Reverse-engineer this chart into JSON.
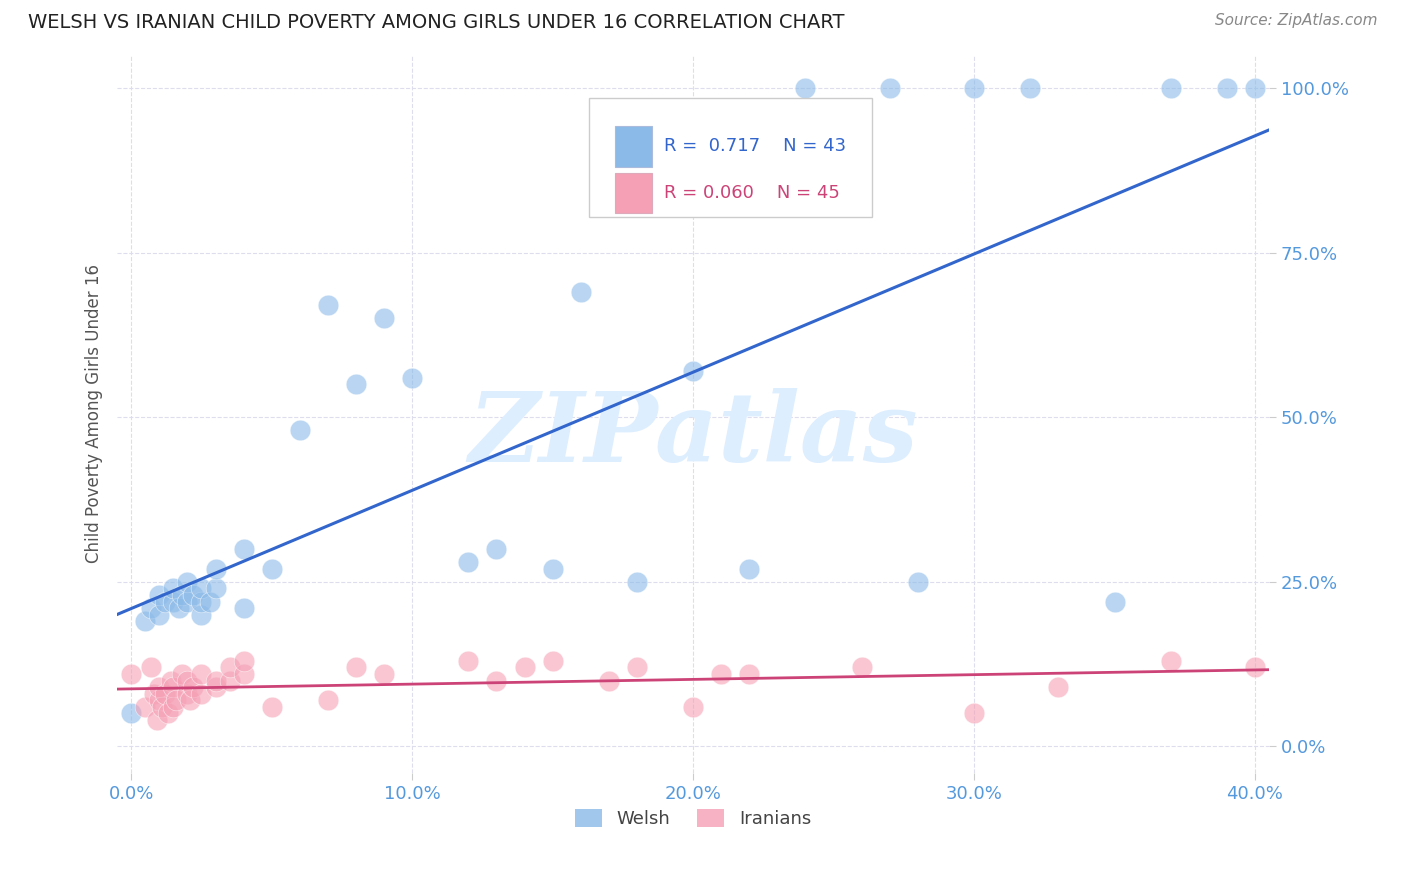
{
  "title": "WELSH VS IRANIAN CHILD POVERTY AMONG GIRLS UNDER 16 CORRELATION CHART",
  "source": "Source: ZipAtlas.com",
  "ylabel_label": "Child Poverty Among Girls Under 16",
  "legend_labels": [
    "Welsh",
    "Iranians"
  ],
  "welsh_R": "0.717",
  "welsh_N": "43",
  "iranian_R": "0.060",
  "iranian_N": "45",
  "welsh_color": "#8BBAE8",
  "iranian_color": "#F5A0B5",
  "welsh_line_color": "#3366CC",
  "iranian_line_color": "#CC4477",
  "tick_color": "#5599DD",
  "watermark": "ZIPatlas",
  "watermark_color": "#DDEEFF",
  "welsh_x": [
    0.0,
    0.005,
    0.007,
    0.01,
    0.01,
    0.012,
    0.015,
    0.015,
    0.017,
    0.018,
    0.02,
    0.02,
    0.022,
    0.025,
    0.025,
    0.025,
    0.028,
    0.03,
    0.03,
    0.04,
    0.04,
    0.05,
    0.06,
    0.07,
    0.08,
    0.09,
    0.1,
    0.12,
    0.13,
    0.15,
    0.16,
    0.18,
    0.2,
    0.22,
    0.24,
    0.27,
    0.28,
    0.3,
    0.32,
    0.35,
    0.37,
    0.39,
    0.4
  ],
  "welsh_y": [
    0.05,
    0.19,
    0.21,
    0.2,
    0.23,
    0.22,
    0.22,
    0.24,
    0.21,
    0.23,
    0.22,
    0.25,
    0.23,
    0.2,
    0.22,
    0.24,
    0.22,
    0.24,
    0.27,
    0.21,
    0.3,
    0.27,
    0.48,
    0.67,
    0.55,
    0.65,
    0.56,
    0.28,
    0.3,
    0.27,
    0.69,
    0.25,
    0.57,
    0.27,
    1.0,
    1.0,
    0.25,
    1.0,
    1.0,
    0.22,
    1.0,
    1.0,
    1.0
  ],
  "iranian_x": [
    0.0,
    0.005,
    0.007,
    0.008,
    0.009,
    0.01,
    0.01,
    0.011,
    0.012,
    0.013,
    0.014,
    0.015,
    0.015,
    0.016,
    0.018,
    0.02,
    0.02,
    0.021,
    0.022,
    0.025,
    0.025,
    0.03,
    0.03,
    0.035,
    0.035,
    0.04,
    0.04,
    0.05,
    0.07,
    0.08,
    0.09,
    0.12,
    0.13,
    0.14,
    0.15,
    0.17,
    0.18,
    0.2,
    0.21,
    0.22,
    0.26,
    0.3,
    0.33,
    0.37,
    0.4
  ],
  "iranian_y": [
    0.11,
    0.06,
    0.12,
    0.08,
    0.04,
    0.07,
    0.09,
    0.06,
    0.08,
    0.05,
    0.1,
    0.06,
    0.09,
    0.07,
    0.11,
    0.08,
    0.1,
    0.07,
    0.09,
    0.08,
    0.11,
    0.09,
    0.1,
    0.1,
    0.12,
    0.11,
    0.13,
    0.06,
    0.07,
    0.12,
    0.11,
    0.13,
    0.1,
    0.12,
    0.13,
    0.1,
    0.12,
    0.06,
    0.11,
    0.11,
    0.12,
    0.05,
    0.09,
    0.13,
    0.12
  ],
  "xlim": [
    -0.005,
    0.405
  ],
  "ylim": [
    -0.04,
    1.05
  ],
  "x_ticks": [
    0.0,
    0.1,
    0.2,
    0.3,
    0.4
  ],
  "y_ticks": [
    0.0,
    0.25,
    0.5,
    0.75,
    1.0
  ],
  "background_color": "#FFFFFF",
  "grid_color": "#DDDDEE",
  "legend_box_color": "#FFFFFF",
  "legend_border_color": "#CCCCCC"
}
